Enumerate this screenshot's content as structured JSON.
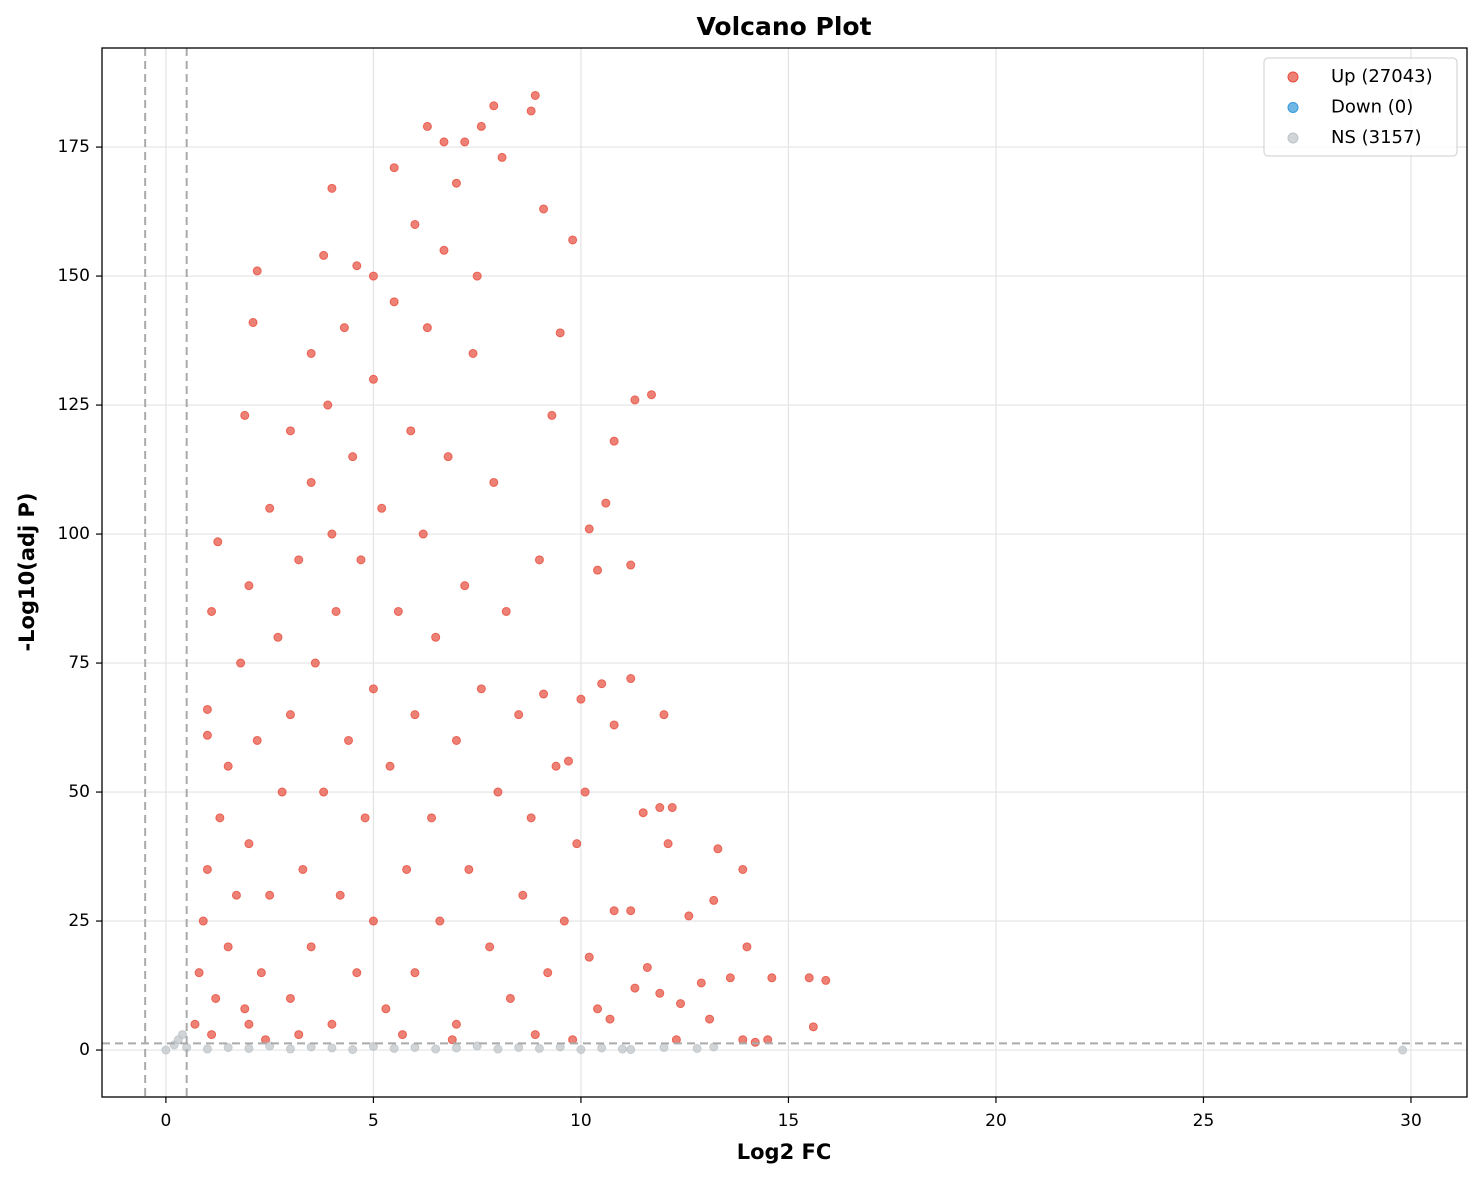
{
  "chart_data": {
    "type": "scatter",
    "title": "Volcano Plot",
    "x_label": "Log2 FC",
    "y_label": "-Log10(adj P)",
    "xlim": [
      -1.54,
      31.35
    ],
    "ylim": [
      -9.1,
      194.2
    ],
    "xticks": [
      0,
      5,
      10,
      15,
      20,
      25,
      30
    ],
    "yticks": [
      0,
      25,
      50,
      75,
      100,
      125,
      150,
      175
    ],
    "grid": true,
    "legend_position": "upper-right",
    "thresholds": {
      "x": [
        -0.5,
        0.5
      ],
      "y": 1.3
    },
    "series": [
      {
        "name": "Up (27043)",
        "color": "#e74c3c",
        "x": [
          8.9,
          8.8,
          7.9,
          7.6,
          6.3,
          6.7,
          7.2,
          8.1,
          5.5,
          4,
          9.1,
          9.8,
          2.2,
          4.6,
          2.1,
          3.8,
          9.5,
          11.3,
          11.7,
          10.8,
          9.3,
          1.9,
          10.6,
          10.2,
          10.4,
          11.2,
          11.2,
          10.8,
          12,
          10.5,
          10,
          9.1,
          1.1,
          1.25,
          1,
          1,
          9.7,
          10.1,
          11.5,
          11.9,
          12.2,
          13.3,
          13.9,
          12.1,
          11.2,
          12.6,
          13.2,
          14,
          14.6,
          15.5,
          15.9,
          15.6,
          14.5,
          14.2,
          13.9,
          13.6,
          12.9,
          11.6,
          11.9,
          12.4,
          13.1,
          12.3,
          11.3,
          10.7,
          0.7,
          0.8,
          0.9,
          1,
          1.2,
          1.3,
          1.5,
          1.5,
          1.7,
          1.8,
          2,
          2,
          2,
          2.2,
          2.3,
          2.5,
          2.5,
          2.7,
          2.8,
          3,
          3,
          3,
          3.2,
          3.3,
          3.5,
          3.5,
          3.5,
          3.6,
          3.8,
          3.9,
          4,
          4,
          4.1,
          4.2,
          4.3,
          4.4,
          4.5,
          4.6,
          4.7,
          4.8,
          5,
          5,
          5,
          5,
          5.2,
          5.3,
          5.4,
          5.5,
          5.6,
          5.8,
          5.9,
          6,
          6,
          6,
          6.2,
          6.3,
          6.4,
          6.5,
          6.6,
          6.7,
          6.8,
          7,
          7,
          7,
          7.2,
          7.3,
          7.4,
          7.5,
          7.6,
          7.8,
          7.9,
          8,
          8.2,
          8.3,
          8.5,
          8.6,
          8.8,
          9,
          9.2,
          9.4,
          9.6,
          9.9,
          10.2,
          10.4,
          10.8,
          5.7,
          3.2,
          1.1,
          2.4,
          6.9,
          8.9,
          9.8,
          1.9
        ],
        "values": [
          185,
          182,
          183,
          179,
          179,
          176,
          176,
          173,
          171,
          167,
          163,
          157,
          151,
          152,
          141,
          154,
          139,
          126,
          127,
          118,
          123,
          123,
          106,
          101,
          93,
          94,
          72,
          63,
          65,
          71,
          68,
          69,
          85,
          98.5,
          66,
          61,
          56,
          50,
          46,
          47,
          47,
          39,
          35,
          40,
          27,
          26,
          29,
          20,
          14,
          14,
          13.5,
          4.5,
          2,
          1.5,
          2,
          14,
          13,
          16,
          11,
          9,
          6,
          2,
          12,
          6,
          5,
          15,
          25,
          35,
          10,
          45,
          20,
          55,
          30,
          75,
          5,
          40,
          90,
          60,
          15,
          105,
          30,
          80,
          50,
          10,
          120,
          65,
          95,
          35,
          135,
          110,
          20,
          75,
          50,
          125,
          5,
          100,
          85,
          30,
          140,
          60,
          115,
          15,
          95,
          45,
          150,
          130,
          70,
          25,
          105,
          8,
          55,
          145,
          85,
          35,
          120,
          160,
          65,
          15,
          100,
          140,
          45,
          80,
          25,
          155,
          115,
          60,
          5,
          168,
          90,
          35,
          135,
          150,
          70,
          20,
          110,
          50,
          85,
          10,
          65,
          30,
          45,
          95,
          15,
          55,
          25,
          40,
          18,
          8,
          27,
          3,
          3,
          3,
          2,
          2,
          3,
          2,
          8
        ]
      },
      {
        "name": "Down (0)",
        "color": "#3498db",
        "x": [],
        "values": []
      },
      {
        "name": "NS (3157)",
        "color": "#bdc3c7",
        "x": [
          0,
          0.2,
          0.4,
          0.3,
          0.5,
          1,
          1.5,
          2,
          2.5,
          3,
          3.5,
          4,
          4.5,
          5,
          5.5,
          6,
          6.5,
          7,
          7.5,
          8,
          8.5,
          9,
          9.5,
          10,
          10.5,
          11,
          11.2,
          12,
          12.8,
          13.2,
          29.8
        ],
        "values": [
          0,
          1,
          3,
          2,
          0.5,
          0.2,
          0.5,
          0.3,
          0.8,
          0.2,
          0.6,
          0.4,
          0.1,
          0.7,
          0.3,
          0.5,
          0.2,
          0.4,
          0.8,
          0.2,
          0.5,
          0.3,
          0.6,
          0.1,
          0.4,
          0.2,
          0.1,
          0.5,
          0.3,
          0.6,
          0
        ]
      }
    ]
  }
}
